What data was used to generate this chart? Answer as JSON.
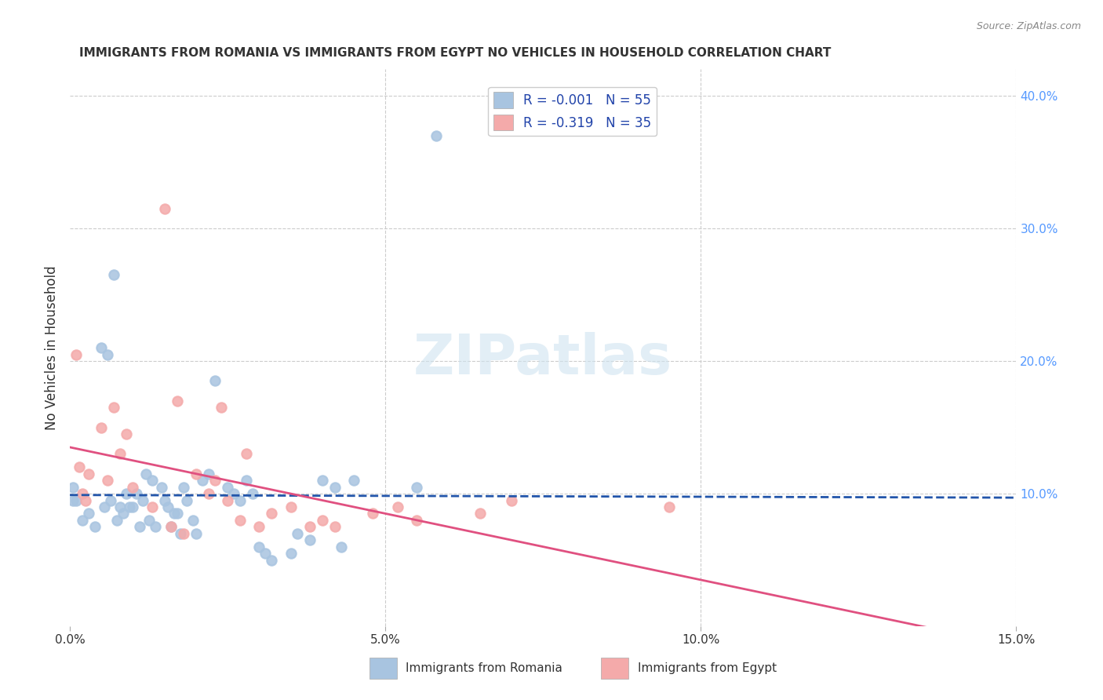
{
  "title": "IMMIGRANTS FROM ROMANIA VS IMMIGRANTS FROM EGYPT NO VEHICLES IN HOUSEHOLD CORRELATION CHART",
  "source": "Source: ZipAtlas.com",
  "ylabel_left": "No Vehicles in Household",
  "x_tick_labels": [
    "0.0%",
    "5.0%",
    "10.0%",
    "15.0%"
  ],
  "x_tick_values": [
    0.0,
    5.0,
    10.0,
    15.0
  ],
  "y_tick_labels_right": [
    "10.0%",
    "20.0%",
    "30.0%",
    "40.0%"
  ],
  "y_tick_values_right": [
    10.0,
    20.0,
    30.0,
    40.0
  ],
  "xlim": [
    0.0,
    15.0
  ],
  "ylim": [
    0.0,
    42.0
  ],
  "legend_romania": "Immigrants from Romania",
  "legend_egypt": "Immigrants from Egypt",
  "romania_R": "-0.001",
  "romania_N": "55",
  "egypt_R": "-0.319",
  "egypt_N": "35",
  "romania_color": "#a8c4e0",
  "egypt_color": "#f4aaaa",
  "romania_line_color": "#2255aa",
  "egypt_line_color": "#e05080",
  "title_color": "#333333",
  "source_color": "#888888",
  "axis_label_color": "#333333",
  "tick_color_right": "#5599ff",
  "grid_color": "#cccccc",
  "romania_scatter_x": [
    0.1,
    0.3,
    0.5,
    0.6,
    0.7,
    0.8,
    0.9,
    1.0,
    1.1,
    1.2,
    1.3,
    1.5,
    1.6,
    1.7,
    1.8,
    2.0,
    2.1,
    2.2,
    2.3,
    2.5,
    2.6,
    2.7,
    2.8,
    2.9,
    3.0,
    3.1,
    3.2,
    3.5,
    3.6,
    3.8,
    4.0,
    4.2,
    4.3,
    4.5,
    5.5,
    5.8,
    0.05,
    0.05,
    0.2,
    0.4,
    0.55,
    0.65,
    0.75,
    0.85,
    0.95,
    1.05,
    1.15,
    1.25,
    1.35,
    1.45,
    1.55,
    1.65,
    1.75,
    1.85,
    1.95
  ],
  "romania_scatter_y": [
    9.5,
    8.5,
    21.0,
    20.5,
    26.5,
    9.0,
    10.0,
    9.0,
    7.5,
    11.5,
    11.0,
    9.5,
    7.5,
    8.5,
    10.5,
    7.0,
    11.0,
    11.5,
    18.5,
    10.5,
    10.0,
    9.5,
    11.0,
    10.0,
    6.0,
    5.5,
    5.0,
    5.5,
    7.0,
    6.5,
    11.0,
    10.5,
    6.0,
    11.0,
    10.5,
    37.0,
    9.5,
    10.5,
    8.0,
    7.5,
    9.0,
    9.5,
    8.0,
    8.5,
    9.0,
    10.0,
    9.5,
    8.0,
    7.5,
    10.5,
    9.0,
    8.5,
    7.0,
    9.5,
    8.0
  ],
  "egypt_scatter_x": [
    0.1,
    0.15,
    0.2,
    0.25,
    0.3,
    0.5,
    0.7,
    0.8,
    1.0,
    1.3,
    1.5,
    1.7,
    2.0,
    2.2,
    2.5,
    2.7,
    2.8,
    3.0,
    3.2,
    3.5,
    4.0,
    4.2,
    4.8,
    5.2,
    5.5,
    6.5,
    7.0,
    9.5,
    2.4,
    1.8,
    1.6,
    0.9,
    0.6,
    2.3,
    3.8
  ],
  "egypt_scatter_y": [
    20.5,
    12.0,
    10.0,
    9.5,
    11.5,
    15.0,
    16.5,
    13.0,
    10.5,
    9.0,
    31.5,
    17.0,
    11.5,
    10.0,
    9.5,
    8.0,
    13.0,
    7.5,
    8.5,
    9.0,
    8.0,
    7.5,
    8.5,
    9.0,
    8.0,
    8.5,
    9.5,
    9.0,
    16.5,
    7.0,
    7.5,
    14.5,
    11.0,
    11.0,
    7.5
  ],
  "dot_size_romania": 80,
  "dot_size_egypt": 80
}
